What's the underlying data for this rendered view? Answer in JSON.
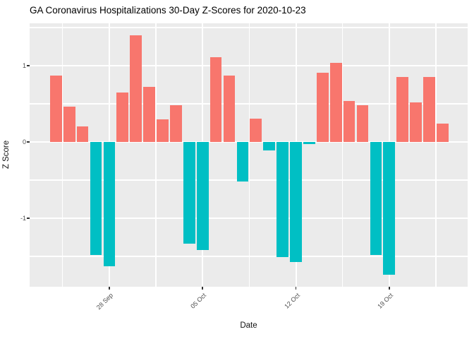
{
  "title": "GA Coronavirus Hospitalizations 30-Day Z-Scores for 2020-10-23",
  "chart_data": {
    "type": "bar",
    "title": "GA Coronavirus Hospitalizations 30-Day Z-Scores for 2020-10-23",
    "xlabel": "Date",
    "ylabel": "Z Score",
    "x": [
      "2020-09-24",
      "2020-09-25",
      "2020-09-26",
      "2020-09-27",
      "2020-09-28",
      "2020-09-29",
      "2020-09-30",
      "2020-10-01",
      "2020-10-02",
      "2020-10-03",
      "2020-10-04",
      "2020-10-05",
      "2020-10-06",
      "2020-10-07",
      "2020-10-08",
      "2020-10-09",
      "2020-10-10",
      "2020-10-11",
      "2020-10-12",
      "2020-10-13",
      "2020-10-14",
      "2020-10-15",
      "2020-10-16",
      "2020-10-17",
      "2020-10-18",
      "2020-10-19",
      "2020-10-20",
      "2020-10-21",
      "2020-10-22",
      "2020-10-23"
    ],
    "values": [
      0.87,
      0.46,
      0.2,
      -1.48,
      -1.63,
      0.65,
      1.4,
      0.72,
      0.3,
      0.48,
      -1.33,
      -1.42,
      1.11,
      0.87,
      -0.52,
      0.31,
      -0.11,
      -1.51,
      -1.57,
      -0.03,
      0.91,
      1.04,
      0.54,
      0.48,
      -1.48,
      -1.74,
      0.85,
      0.52,
      0.85,
      0.24
    ],
    "ylim": [
      -1.9,
      1.56
    ],
    "yticks": [
      1,
      0,
      -1
    ],
    "ytick_labels": [
      "1",
      "0",
      "-1"
    ],
    "minor_yticks": [
      1.5,
      0.5,
      -0.5,
      -1.5
    ],
    "xticks": [
      {
        "day_index": 4,
        "label": "28 Sep"
      },
      {
        "day_index": 11,
        "label": "05 Oct"
      },
      {
        "day_index": 18,
        "label": "12 Oct"
      },
      {
        "day_index": 25,
        "label": "19 Oct"
      }
    ],
    "minor_xtick_day_indices": [
      0.5,
      7.5,
      14.5,
      21.5,
      28.5
    ],
    "grid": true,
    "legend": "none",
    "positive_color": "#F8766D",
    "negative_color": "#00BFC4",
    "panel_background": "#EBEBEB",
    "grid_color": "#FFFFFF",
    "tick_color": "#333333",
    "axis_text_color": "#4D4D4D"
  }
}
